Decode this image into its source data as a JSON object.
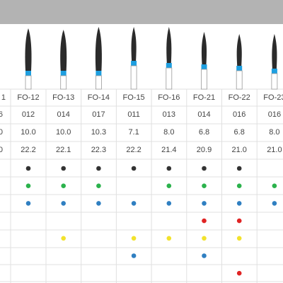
{
  "columns": [
    {
      "label": "1",
      "values": [
        "6",
        "0",
        "0"
      ]
    },
    {
      "label": "FO-12",
      "values": [
        "012",
        "10.0",
        "22.2"
      ]
    },
    {
      "label": "FO-13",
      "values": [
        "014",
        "10.0",
        "22.1"
      ]
    },
    {
      "label": "FO-14",
      "values": [
        "017",
        "10.3",
        "22.3"
      ]
    },
    {
      "label": "FO-15",
      "values": [
        "011",
        "7.1",
        "22.2"
      ]
    },
    {
      "label": "FO-16",
      "values": [
        "013",
        "8.0",
        "21.4"
      ]
    },
    {
      "label": "FO-21",
      "values": [
        "014",
        "6.8",
        "20.9"
      ]
    },
    {
      "label": "FO-22",
      "values": [
        "016",
        "6.8",
        "21.0"
      ]
    },
    {
      "label": "FO-23",
      "values": [
        "016",
        "8.0",
        "21.0"
      ]
    }
  ],
  "dot_rows": [
    {
      "color": "#333333",
      "marks": [
        false,
        true,
        true,
        true,
        true,
        true,
        true,
        true,
        false
      ]
    },
    {
      "color": "#2bb24c",
      "marks": [
        false,
        true,
        true,
        true,
        false,
        true,
        true,
        true,
        true
      ]
    },
    {
      "color": "#2f7fc1",
      "marks": [
        false,
        true,
        true,
        true,
        true,
        true,
        true,
        true,
        true
      ]
    },
    {
      "color": "#e02424",
      "marks": [
        false,
        false,
        false,
        false,
        false,
        false,
        true,
        true,
        false
      ]
    },
    {
      "color": "#f2e22c",
      "marks": [
        false,
        false,
        true,
        false,
        true,
        true,
        true,
        true,
        false
      ]
    },
    {
      "color": "#2f7fc1",
      "marks": [
        false,
        false,
        false,
        false,
        true,
        false,
        true,
        false,
        false
      ]
    },
    {
      "color": "#e02424",
      "marks": [
        false,
        false,
        false,
        false,
        false,
        false,
        false,
        true,
        false
      ]
    }
  ]
}
